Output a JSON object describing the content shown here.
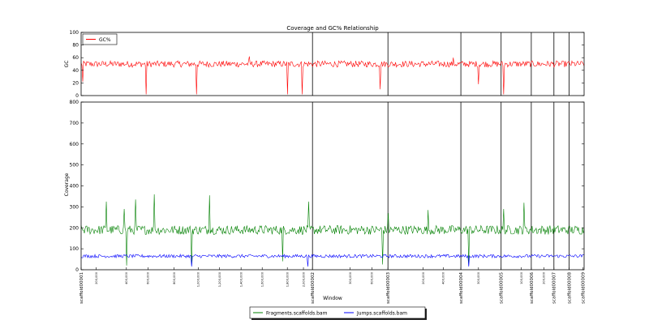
{
  "chart_data": [
    {
      "type": "line",
      "title": "Coverage and GC% Relationship",
      "xlabel": "",
      "ylabel": "GC",
      "ylim": [
        0,
        100
      ],
      "yticks": [
        0,
        20,
        40,
        60,
        80,
        100
      ],
      "grid": false,
      "legend_position": "top-left",
      "series": [
        {
          "name": "GC%",
          "color": "#ff0000",
          "baseline": 50,
          "noise": 5,
          "points": [
            {
              "pos": 0.004,
              "value": 22
            },
            {
              "pos": 0.13,
              "value": 2
            },
            {
              "pos": 0.23,
              "value": 2
            },
            {
              "pos": 0.41,
              "value": 2
            },
            {
              "pos": 0.44,
              "value": 2
            },
            {
              "pos": 0.595,
              "value": 10
            },
            {
              "pos": 0.79,
              "value": 18
            },
            {
              "pos": 0.84,
              "value": 2
            },
            {
              "pos": 0.335,
              "value": 62
            },
            {
              "pos": 0.74,
              "value": 60
            }
          ]
        }
      ]
    },
    {
      "type": "line",
      "title": "",
      "xlabel": "Window",
      "ylabel": "Coverage",
      "ylim": [
        0,
        800
      ],
      "yticks": [
        0,
        100,
        200,
        300,
        400,
        500,
        600,
        700,
        800
      ],
      "grid": false,
      "legend_position": "bottom-center",
      "x_tick_labels": [
        {
          "pos": 0.0,
          "text": "scaffold00001",
          "major": true
        },
        {
          "pos": 0.03,
          "text": "200,000",
          "major": false
        },
        {
          "pos": 0.09,
          "text": "400,000",
          "major": false
        },
        {
          "pos": 0.133,
          "text": "600,000",
          "major": false
        },
        {
          "pos": 0.185,
          "text": "800,000",
          "major": false
        },
        {
          "pos": 0.233,
          "text": "1,000,000",
          "major": false
        },
        {
          "pos": 0.275,
          "text": "1,200,000",
          "major": false
        },
        {
          "pos": 0.318,
          "text": "1,400,000",
          "major": false
        },
        {
          "pos": 0.36,
          "text": "1,600,000",
          "major": false
        },
        {
          "pos": 0.41,
          "text": "1,800,000",
          "major": false
        },
        {
          "pos": 0.442,
          "text": "2,000,000",
          "major": false
        },
        {
          "pos": 0.46,
          "text": "scaffold00002",
          "major": true
        },
        {
          "pos": 0.535,
          "text": "300,000",
          "major": false
        },
        {
          "pos": 0.578,
          "text": "600,000",
          "major": false
        },
        {
          "pos": 0.61,
          "text": "scaffold00003",
          "major": true
        },
        {
          "pos": 0.68,
          "text": "200,000",
          "major": false
        },
        {
          "pos": 0.72,
          "text": "400,000",
          "major": false
        },
        {
          "pos": 0.755,
          "text": "scaffold00004",
          "major": true
        },
        {
          "pos": 0.79,
          "text": "300,000",
          "major": false
        },
        {
          "pos": 0.835,
          "text": "scaffold00005",
          "major": true
        },
        {
          "pos": 0.875,
          "text": "100,000",
          "major": false
        },
        {
          "pos": 0.895,
          "text": "scaffold00006",
          "major": true
        },
        {
          "pos": 0.92,
          "text": "200,000",
          "major": false
        },
        {
          "pos": 0.94,
          "text": "scaffold00007",
          "major": true
        },
        {
          "pos": 0.97,
          "text": "scaffold00008",
          "major": true
        },
        {
          "pos": 0.998,
          "text": "scaffold00009",
          "major": true
        }
      ],
      "scaffold_boundaries": [
        0.46,
        0.61,
        0.755,
        0.835,
        0.895,
        0.94,
        0.97
      ],
      "series": [
        {
          "name": "Fragments.scaffolds.bam",
          "color": "#008000",
          "baseline": 190,
          "noise": 22,
          "points": [
            {
              "pos": 0.05,
              "value": 325
            },
            {
              "pos": 0.085,
              "value": 290
            },
            {
              "pos": 0.108,
              "value": 335
            },
            {
              "pos": 0.145,
              "value": 360
            },
            {
              "pos": 0.255,
              "value": 355
            },
            {
              "pos": 0.452,
              "value": 325
            },
            {
              "pos": 0.61,
              "value": 270
            },
            {
              "pos": 0.69,
              "value": 285
            },
            {
              "pos": 0.84,
              "value": 290
            },
            {
              "pos": 0.88,
              "value": 320
            },
            {
              "pos": 0.09,
              "value": 20
            },
            {
              "pos": 0.22,
              "value": 20
            },
            {
              "pos": 0.4,
              "value": 40
            },
            {
              "pos": 0.6,
              "value": 25
            },
            {
              "pos": 0.77,
              "value": 20
            }
          ]
        },
        {
          "name": "Jumps.scaffolds.bam",
          "color": "#0000ff",
          "baseline": 65,
          "noise": 8,
          "points": [
            {
              "pos": 0.22,
              "value": 15
            },
            {
              "pos": 0.45,
              "value": 15
            },
            {
              "pos": 0.77,
              "value": 15
            }
          ]
        }
      ]
    }
  ]
}
